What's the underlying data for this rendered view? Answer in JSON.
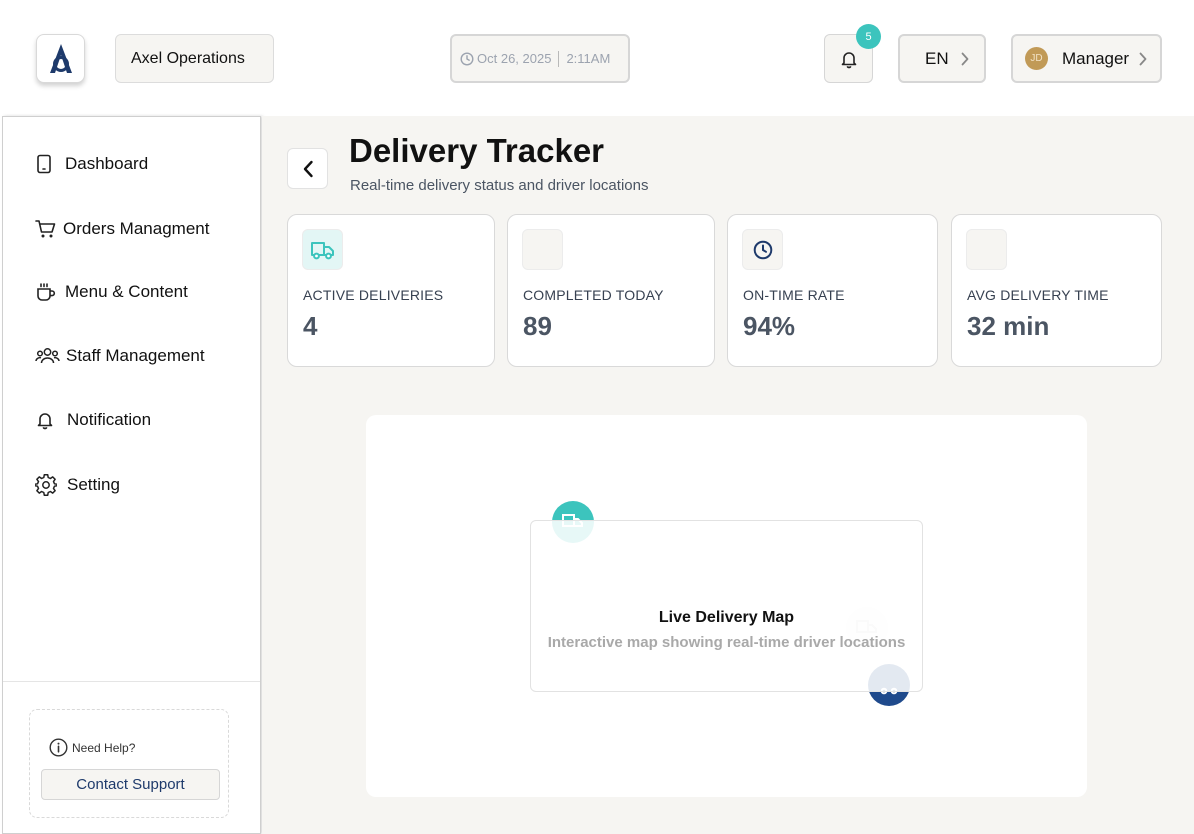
{
  "header": {
    "org_name": "Axel Operations",
    "date": "Oct 26, 2025",
    "time": "2:11AM",
    "notification_count": "5",
    "language": "EN",
    "user_initials": "JD",
    "user_role": "Manager"
  },
  "sidebar": {
    "items": [
      {
        "label": "Dashboard",
        "icon": "tablet-icon"
      },
      {
        "label": "Orders Managment",
        "icon": "cart-icon"
      },
      {
        "label": "Menu & Content",
        "icon": "cup-icon"
      },
      {
        "label": "Staff Management",
        "icon": "users-icon"
      },
      {
        "label": "Notification",
        "icon": "bell-icon"
      },
      {
        "label": "Setting",
        "icon": "gear-icon"
      }
    ],
    "help_title": "Need Help?",
    "contact_label": "Contact Support"
  },
  "page": {
    "title": "Delivery Tracker",
    "subtitle": "Real-time delivery status and driver locations"
  },
  "stats": [
    {
      "label": "ACTIVE DELIVERIES",
      "value": "4",
      "icon": "truck-icon"
    },
    {
      "label": "COMPLETED TODAY",
      "value": "89",
      "icon": ""
    },
    {
      "label": "ON-TIME RATE",
      "value": "94%",
      "icon": "clock-icon"
    },
    {
      "label": "AVG DELIVERY TIME",
      "value": "32 min",
      "icon": ""
    }
  ],
  "map": {
    "title": "Live Delivery Map",
    "subtitle": "Interactive map showing real-time driver locations"
  },
  "colors": {
    "accent_teal": "#3cc4bd",
    "accent_navy": "#1f4a8c",
    "background": "#f6f5f2"
  }
}
